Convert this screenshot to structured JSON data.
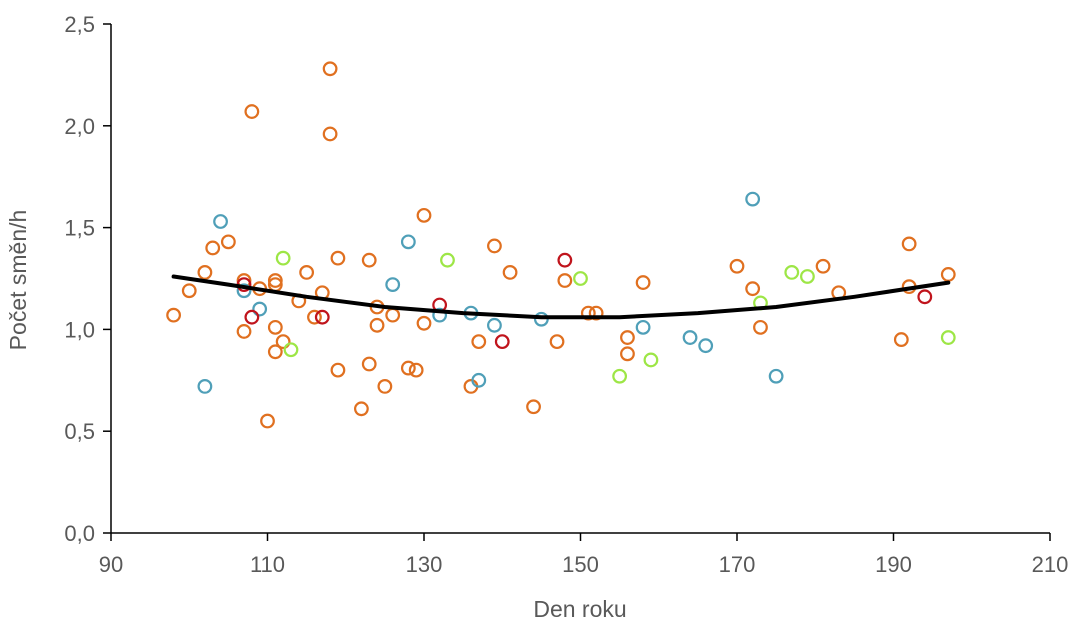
{
  "chart_data": {
    "type": "scatter",
    "title": "",
    "xlabel": "Den roku",
    "ylabel": "Počet směn/h",
    "xlim": [
      90,
      210
    ],
    "ylim": [
      0.0,
      2.5
    ],
    "x_ticks": [
      90,
      110,
      130,
      150,
      170,
      190,
      210
    ],
    "x_tick_labels": [
      "90",
      "110",
      "130",
      "150",
      "170",
      "190",
      "210"
    ],
    "y_ticks": [
      0.0,
      0.5,
      1.0,
      1.5,
      2.0,
      2.5
    ],
    "y_tick_labels": [
      "0,0",
      "0,5",
      "1,0",
      "1,5",
      "2,0",
      "2,5"
    ],
    "grid": false,
    "legend": "none",
    "marker": "open-circle",
    "series": [
      {
        "color": "#e07020",
        "points": [
          [
            98,
            1.07
          ],
          [
            100,
            1.19
          ],
          [
            102,
            1.28
          ],
          [
            103,
            1.4
          ],
          [
            105,
            1.43
          ],
          [
            107,
            1.24
          ],
          [
            107,
            0.99
          ],
          [
            108,
            2.07
          ],
          [
            109,
            1.2
          ],
          [
            110,
            0.55
          ],
          [
            111,
            1.24
          ],
          [
            111,
            1.22
          ],
          [
            111,
            1.01
          ],
          [
            111,
            0.89
          ],
          [
            112,
            0.94
          ],
          [
            114,
            1.14
          ],
          [
            115,
            1.28
          ],
          [
            116,
            1.06
          ],
          [
            117,
            1.18
          ],
          [
            118,
            2.28
          ],
          [
            118,
            1.96
          ],
          [
            119,
            1.35
          ],
          [
            119,
            0.8
          ],
          [
            122,
            0.61
          ],
          [
            123,
            1.34
          ],
          [
            123,
            0.83
          ],
          [
            124,
            1.11
          ],
          [
            124,
            1.02
          ],
          [
            125,
            0.72
          ],
          [
            126,
            1.07
          ],
          [
            128,
            0.81
          ],
          [
            129,
            0.8
          ],
          [
            130,
            1.56
          ],
          [
            130,
            1.03
          ],
          [
            136,
            0.72
          ],
          [
            137,
            0.94
          ],
          [
            139,
            1.41
          ],
          [
            141,
            1.28
          ],
          [
            144,
            0.62
          ],
          [
            147,
            0.94
          ],
          [
            148,
            1.24
          ],
          [
            151,
            1.08
          ],
          [
            152,
            1.08
          ],
          [
            156,
            0.96
          ],
          [
            156,
            0.88
          ],
          [
            158,
            1.23
          ],
          [
            170,
            1.31
          ],
          [
            172,
            1.2
          ],
          [
            173,
            1.01
          ],
          [
            181,
            1.31
          ],
          [
            183,
            1.18
          ],
          [
            191,
            0.95
          ],
          [
            192,
            1.42
          ],
          [
            192,
            1.21
          ],
          [
            197,
            1.27
          ]
        ]
      },
      {
        "color": "#4f9fb8",
        "points": [
          [
            102,
            0.72
          ],
          [
            104,
            1.53
          ],
          [
            107,
            1.19
          ],
          [
            109,
            1.1
          ],
          [
            126,
            1.22
          ],
          [
            128,
            1.43
          ],
          [
            132,
            1.07
          ],
          [
            136,
            1.08
          ],
          [
            137,
            0.75
          ],
          [
            139,
            1.02
          ],
          [
            145,
            1.05
          ],
          [
            158,
            1.01
          ],
          [
            164,
            0.96
          ],
          [
            166,
            0.92
          ],
          [
            172,
            1.64
          ],
          [
            175,
            0.77
          ]
        ]
      },
      {
        "color": "#9de646",
        "points": [
          [
            112,
            1.35
          ],
          [
            113,
            0.9
          ],
          [
            133,
            1.34
          ],
          [
            150,
            1.25
          ],
          [
            155,
            0.77
          ],
          [
            159,
            0.85
          ],
          [
            173,
            1.13
          ],
          [
            177,
            1.28
          ],
          [
            179,
            1.26
          ],
          [
            197,
            0.96
          ]
        ]
      },
      {
        "color": "#c0141c",
        "points": [
          [
            107,
            1.22
          ],
          [
            108,
            1.06
          ],
          [
            117,
            1.06
          ],
          [
            132,
            1.12
          ],
          [
            140,
            0.94
          ],
          [
            148,
            1.34
          ],
          [
            194,
            1.16
          ]
        ]
      }
    ],
    "trendline": {
      "type": "polynomial-2",
      "color": "#000000",
      "points": [
        [
          98,
          1.26
        ],
        [
          105,
          1.22
        ],
        [
          115,
          1.16
        ],
        [
          125,
          1.11
        ],
        [
          135,
          1.08
        ],
        [
          145,
          1.06
        ],
        [
          155,
          1.06
        ],
        [
          165,
          1.08
        ],
        [
          175,
          1.11
        ],
        [
          185,
          1.16
        ],
        [
          197,
          1.23
        ]
      ]
    }
  }
}
